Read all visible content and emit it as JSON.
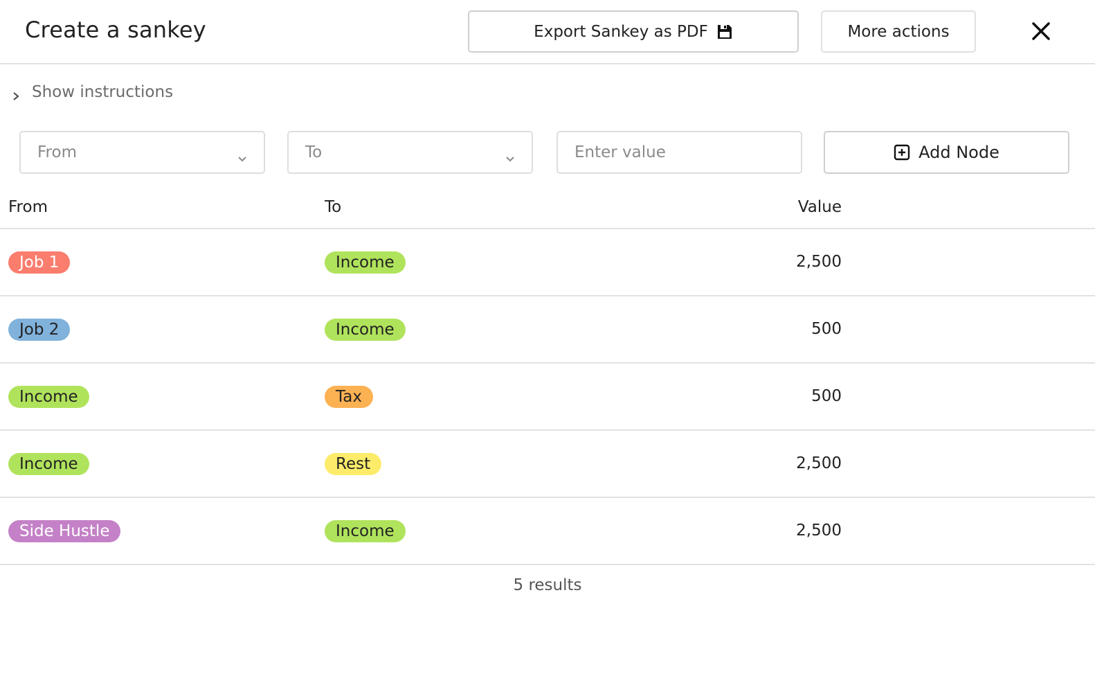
{
  "header": {
    "title": "Create a sankey",
    "export_label": "Export Sankey as PDF",
    "export_icon": "save-icon",
    "more_label": "More actions",
    "close_icon": "close-icon"
  },
  "instructions": {
    "label": "Show instructions",
    "icon": "chevron-right-icon"
  },
  "form": {
    "from_placeholder": "From",
    "to_placeholder": "To",
    "value_placeholder": "Enter value",
    "add_label": "Add Node",
    "add_icon": "plus-square-icon"
  },
  "table": {
    "headers": {
      "from": "From",
      "to": "To",
      "value": "Value"
    },
    "rows": [
      {
        "from": {
          "label": "Job 1",
          "color": "#fa7d6e",
          "text_color": "#ffffff"
        },
        "to": {
          "label": "Income",
          "color": "#b0e35c",
          "text_color": "#222222"
        },
        "value": "2,500"
      },
      {
        "from": {
          "label": "Job 2",
          "color": "#80b2db",
          "text_color": "#222222"
        },
        "to": {
          "label": "Income",
          "color": "#b0e35c",
          "text_color": "#222222"
        },
        "value": "500"
      },
      {
        "from": {
          "label": "Income",
          "color": "#b0e35c",
          "text_color": "#222222"
        },
        "to": {
          "label": "Tax",
          "color": "#fcb153",
          "text_color": "#222222"
        },
        "value": "500"
      },
      {
        "from": {
          "label": "Income",
          "color": "#b0e35c",
          "text_color": "#222222"
        },
        "to": {
          "label": "Rest",
          "color": "#fcec6a",
          "text_color": "#222222"
        },
        "value": "2,500"
      },
      {
        "from": {
          "label": "Side Hustle",
          "color": "#c481c7",
          "text_color": "#ffffff"
        },
        "to": {
          "label": "Income",
          "color": "#b0e35c",
          "text_color": "#222222"
        },
        "value": "2,500"
      }
    ],
    "results_text": "5 results"
  }
}
